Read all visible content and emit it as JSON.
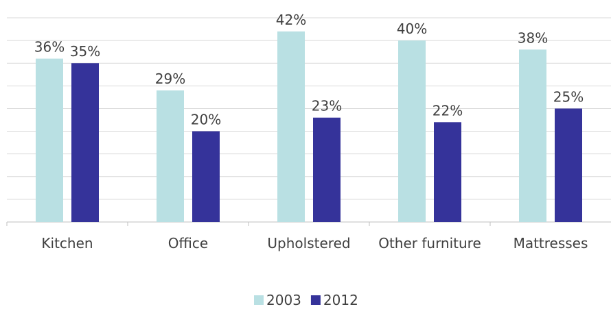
{
  "chart_data": {
    "type": "bar",
    "categories": [
      "Kitchen",
      "Office",
      "Upholstered",
      "Other furniture",
      "Mattresses"
    ],
    "series": [
      {
        "name": "2003",
        "color": "#b9e0e3",
        "values": [
          36,
          29,
          42,
          40,
          38
        ],
        "value_labels": [
          "36%",
          "29%",
          "42%",
          "40%",
          "38%"
        ]
      },
      {
        "name": "2012",
        "color": "#35339a",
        "values": [
          35,
          20,
          23,
          22,
          25
        ],
        "value_labels": [
          "35%",
          "20%",
          "23%",
          "22%",
          "25%"
        ]
      }
    ],
    "ylim": [
      0,
      45
    ],
    "yticks": [
      0,
      5,
      10,
      15,
      20,
      25,
      30,
      35,
      40,
      45
    ],
    "grid": true,
    "legend": "bottom"
  }
}
